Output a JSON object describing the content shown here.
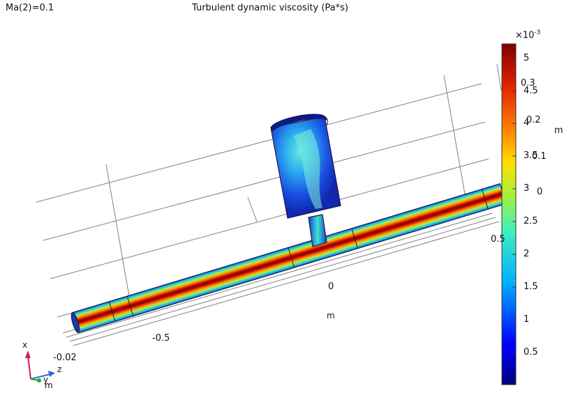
{
  "header": {
    "parameter_label": "Ma(2)=0.1",
    "title": "Turbulent dynamic viscosity (Pa*s)"
  },
  "colorbar": {
    "multiplier": "×10",
    "exponent": "-3",
    "ticks": [
      "5",
      "4.5",
      "4",
      "3.5",
      "3",
      "2.5",
      "2",
      "1.5",
      "1",
      "0.5"
    ],
    "colors": [
      "#00007f",
      "#0000ff",
      "#00b0ff",
      "#3ff0c0",
      "#a0f040",
      "#ffe000",
      "#ff8000",
      "#e02000",
      "#7f0000"
    ]
  },
  "axes": {
    "vertical_ticks": [
      "0.3",
      "0.2",
      "0.1",
      "0"
    ],
    "vertical_unit": "m",
    "horizontal_ticks": [
      "-0.5",
      "0",
      "0.5"
    ],
    "horizontal_unit": "m",
    "depth_tick": "-0.02",
    "depth_unit": "m"
  },
  "triad": {
    "x": "x",
    "y": "y",
    "z": "z"
  }
}
